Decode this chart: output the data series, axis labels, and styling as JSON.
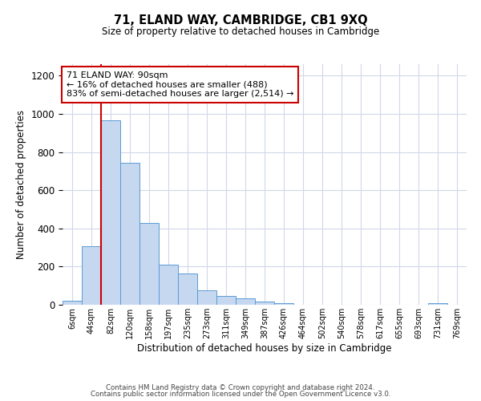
{
  "title": "71, ELAND WAY, CAMBRIDGE, CB1 9XQ",
  "subtitle": "Size of property relative to detached houses in Cambridge",
  "xlabel": "Distribution of detached houses by size in Cambridge",
  "ylabel": "Number of detached properties",
  "bin_labels": [
    "6sqm",
    "44sqm",
    "82sqm",
    "120sqm",
    "158sqm",
    "197sqm",
    "235sqm",
    "273sqm",
    "311sqm",
    "349sqm",
    "387sqm",
    "426sqm",
    "464sqm",
    "502sqm",
    "540sqm",
    "578sqm",
    "617sqm",
    "655sqm",
    "693sqm",
    "731sqm",
    "769sqm"
  ],
  "bar_heights": [
    20,
    305,
    965,
    745,
    430,
    210,
    165,
    75,
    47,
    32,
    18,
    7,
    0,
    0,
    0,
    0,
    0,
    0,
    0,
    8,
    0
  ],
  "bar_color": "#c5d8f0",
  "bar_edge_color": "#5b9bd5",
  "vline_color": "#cc0000",
  "annotation_line1": "71 ELAND WAY: 90sqm",
  "annotation_line2": "← 16% of detached houses are smaller (488)",
  "annotation_line3": "83% of semi-detached houses are larger (2,514) →",
  "annotation_box_color": "#ffffff",
  "annotation_box_edge": "#cc0000",
  "ylim": [
    0,
    1260
  ],
  "yticks": [
    0,
    200,
    400,
    600,
    800,
    1000,
    1200
  ],
  "footer_line1": "Contains HM Land Registry data © Crown copyright and database right 2024.",
  "footer_line2": "Contains public sector information licensed under the Open Government Licence v3.0.",
  "background_color": "#ffffff",
  "grid_color": "#d0d8e8"
}
